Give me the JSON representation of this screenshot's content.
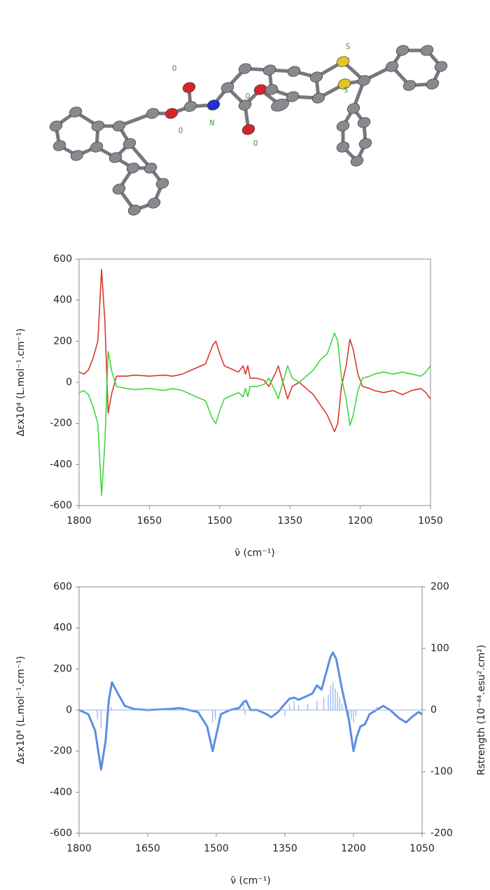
{
  "molecule": {
    "atom_labels": [
      "O",
      "O",
      "N",
      "O",
      "O",
      "S",
      "S"
    ]
  },
  "chart_data": [
    {
      "type": "line",
      "ylabel": "Δεx10⁴ (L.mol⁻¹.cm⁻¹)",
      "xlabel": "ν̄ (cm⁻¹)",
      "xlim": [
        1800,
        1050
      ],
      "xticks": [
        1800,
        1650,
        1500,
        1350,
        1200,
        1050
      ],
      "ylim": [
        -600,
        600
      ],
      "yticks": [
        -600,
        -400,
        -200,
        0,
        200,
        400,
        600
      ],
      "series": [
        {
          "color": "#d9382a",
          "x": [
            1800,
            1790,
            1780,
            1770,
            1760,
            1752,
            1745,
            1738,
            1730,
            1720,
            1700,
            1680,
            1650,
            1620,
            1600,
            1580,
            1560,
            1530,
            1515,
            1508,
            1500,
            1490,
            1470,
            1460,
            1450,
            1445,
            1440,
            1435,
            1420,
            1405,
            1395,
            1380,
            1375,
            1365,
            1355,
            1345,
            1330,
            1315,
            1300,
            1285,
            1270,
            1255,
            1248,
            1240,
            1230,
            1222,
            1215,
            1205,
            1195,
            1180,
            1170,
            1150,
            1130,
            1110,
            1090,
            1070,
            1060,
            1050
          ],
          "values": [
            50,
            40,
            60,
            120,
            200,
            550,
            300,
            -150,
            -50,
            30,
            30,
            35,
            30,
            35,
            30,
            40,
            60,
            90,
            180,
            200,
            140,
            80,
            60,
            50,
            80,
            40,
            80,
            20,
            20,
            10,
            -20,
            50,
            80,
            0,
            -80,
            -20,
            0,
            -30,
            -60,
            -110,
            -160,
            -240,
            -200,
            -20,
            80,
            210,
            160,
            40,
            -20,
            -30,
            -40,
            -50,
            -40,
            -60,
            -40,
            -30,
            -50,
            -80
          ]
        },
        {
          "color": "#3fd63f",
          "x": [
            1800,
            1790,
            1780,
            1770,
            1760,
            1752,
            1745,
            1738,
            1730,
            1720,
            1700,
            1680,
            1650,
            1620,
            1600,
            1580,
            1560,
            1530,
            1515,
            1508,
            1500,
            1490,
            1470,
            1460,
            1450,
            1445,
            1440,
            1435,
            1420,
            1405,
            1395,
            1380,
            1375,
            1365,
            1355,
            1345,
            1330,
            1315,
            1300,
            1285,
            1270,
            1255,
            1248,
            1240,
            1230,
            1222,
            1215,
            1205,
            1195,
            1180,
            1170,
            1150,
            1130,
            1110,
            1090,
            1070,
            1060,
            1050
          ],
          "values": [
            -50,
            -40,
            -60,
            -120,
            -200,
            -550,
            -300,
            150,
            50,
            -20,
            -30,
            -35,
            -30,
            -40,
            -30,
            -40,
            -60,
            -90,
            -180,
            -200,
            -140,
            -80,
            -60,
            -50,
            -70,
            -30,
            -70,
            -20,
            -20,
            -10,
            20,
            -50,
            -80,
            0,
            80,
            20,
            0,
            30,
            60,
            110,
            140,
            240,
            200,
            20,
            -80,
            -210,
            -160,
            -40,
            20,
            30,
            40,
            50,
            40,
            50,
            40,
            30,
            50,
            80
          ]
        }
      ]
    },
    {
      "type": "line",
      "ylabel": "Δεx10⁴ (L.mol⁻¹.cm⁻¹)",
      "xlabel": "ν̄ (cm⁻¹)",
      "y2label": "Rstrength (10⁻⁴⁴.esu².cm²)",
      "xlim": [
        1800,
        1050
      ],
      "xticks": [
        1800,
        1650,
        1500,
        1350,
        1200,
        1050
      ],
      "ylim": [
        -600,
        600
      ],
      "yticks": [
        -600,
        -400,
        -200,
        0,
        200,
        400,
        600
      ],
      "y2lim": [
        -200,
        200
      ],
      "y2ticks": [
        -200,
        -100,
        0,
        100,
        200
      ],
      "series": [
        {
          "color": "#5b8ee0",
          "x": [
            1800,
            1780,
            1765,
            1752,
            1742,
            1735,
            1728,
            1720,
            1700,
            1680,
            1650,
            1600,
            1580,
            1560,
            1540,
            1520,
            1508,
            1500,
            1490,
            1470,
            1450,
            1440,
            1435,
            1425,
            1410,
            1390,
            1380,
            1365,
            1350,
            1340,
            1330,
            1320,
            1305,
            1290,
            1280,
            1270,
            1260,
            1250,
            1245,
            1238,
            1225,
            1210,
            1200,
            1193,
            1185,
            1175,
            1165,
            1150,
            1135,
            1120,
            1100,
            1085,
            1070,
            1058,
            1050
          ],
          "values": [
            0,
            -20,
            -100,
            -290,
            -150,
            50,
            135,
            100,
            20,
            5,
            0,
            5,
            10,
            0,
            -10,
            -80,
            -200,
            -120,
            -20,
            0,
            10,
            40,
            45,
            0,
            0,
            -20,
            -35,
            -10,
            30,
            55,
            60,
            50,
            65,
            80,
            120,
            100,
            180,
            260,
            280,
            250,
            100,
            -50,
            -200,
            -130,
            -80,
            -70,
            -20,
            0,
            20,
            0,
            -40,
            -60,
            -30,
            -10,
            -20
          ]
        },
        {
          "color": "#8fb0e8",
          "style": "stem",
          "axis": "y2",
          "x": [
            1760,
            1752,
            1730,
            1508,
            1502,
            1440,
            1437,
            1350,
            1340,
            1330,
            1320,
            1300,
            1280,
            1265,
            1255,
            1250,
            1245,
            1240,
            1235,
            1230,
            1225,
            1210,
            1205,
            1200,
            1195,
            1150
          ],
          "values": [
            -15,
            -30,
            5,
            -20,
            -15,
            10,
            -8,
            -10,
            10,
            15,
            8,
            10,
            15,
            20,
            25,
            40,
            45,
            35,
            30,
            20,
            10,
            -10,
            -15,
            -20,
            -10,
            5
          ]
        }
      ]
    }
  ]
}
